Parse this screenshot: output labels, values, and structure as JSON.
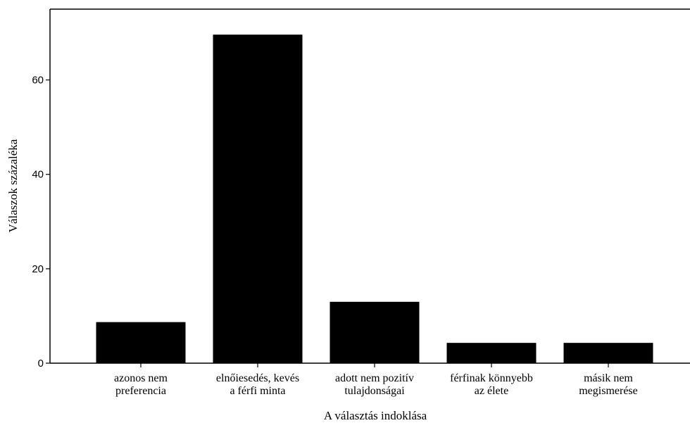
{
  "chart_data": {
    "type": "bar",
    "categories": [
      [
        "azonos nem",
        "preferencia"
      ],
      [
        "elnőiesedés, kevés",
        "a férfi minta"
      ],
      [
        "adott nem pozitív",
        "tulajdonságai"
      ],
      [
        "férfinak könnyebb",
        "az élete"
      ],
      [
        "másik nem",
        "megismerése"
      ]
    ],
    "values": [
      8.7,
      69.6,
      13.0,
      4.3,
      4.3
    ],
    "xlabel": "A választás indoklása",
    "ylabel": "Válaszok százaléka",
    "ylim": [
      0,
      75
    ],
    "yticks": [
      0,
      20,
      40,
      60
    ],
    "bar_color": "#000000",
    "grid": false
  }
}
